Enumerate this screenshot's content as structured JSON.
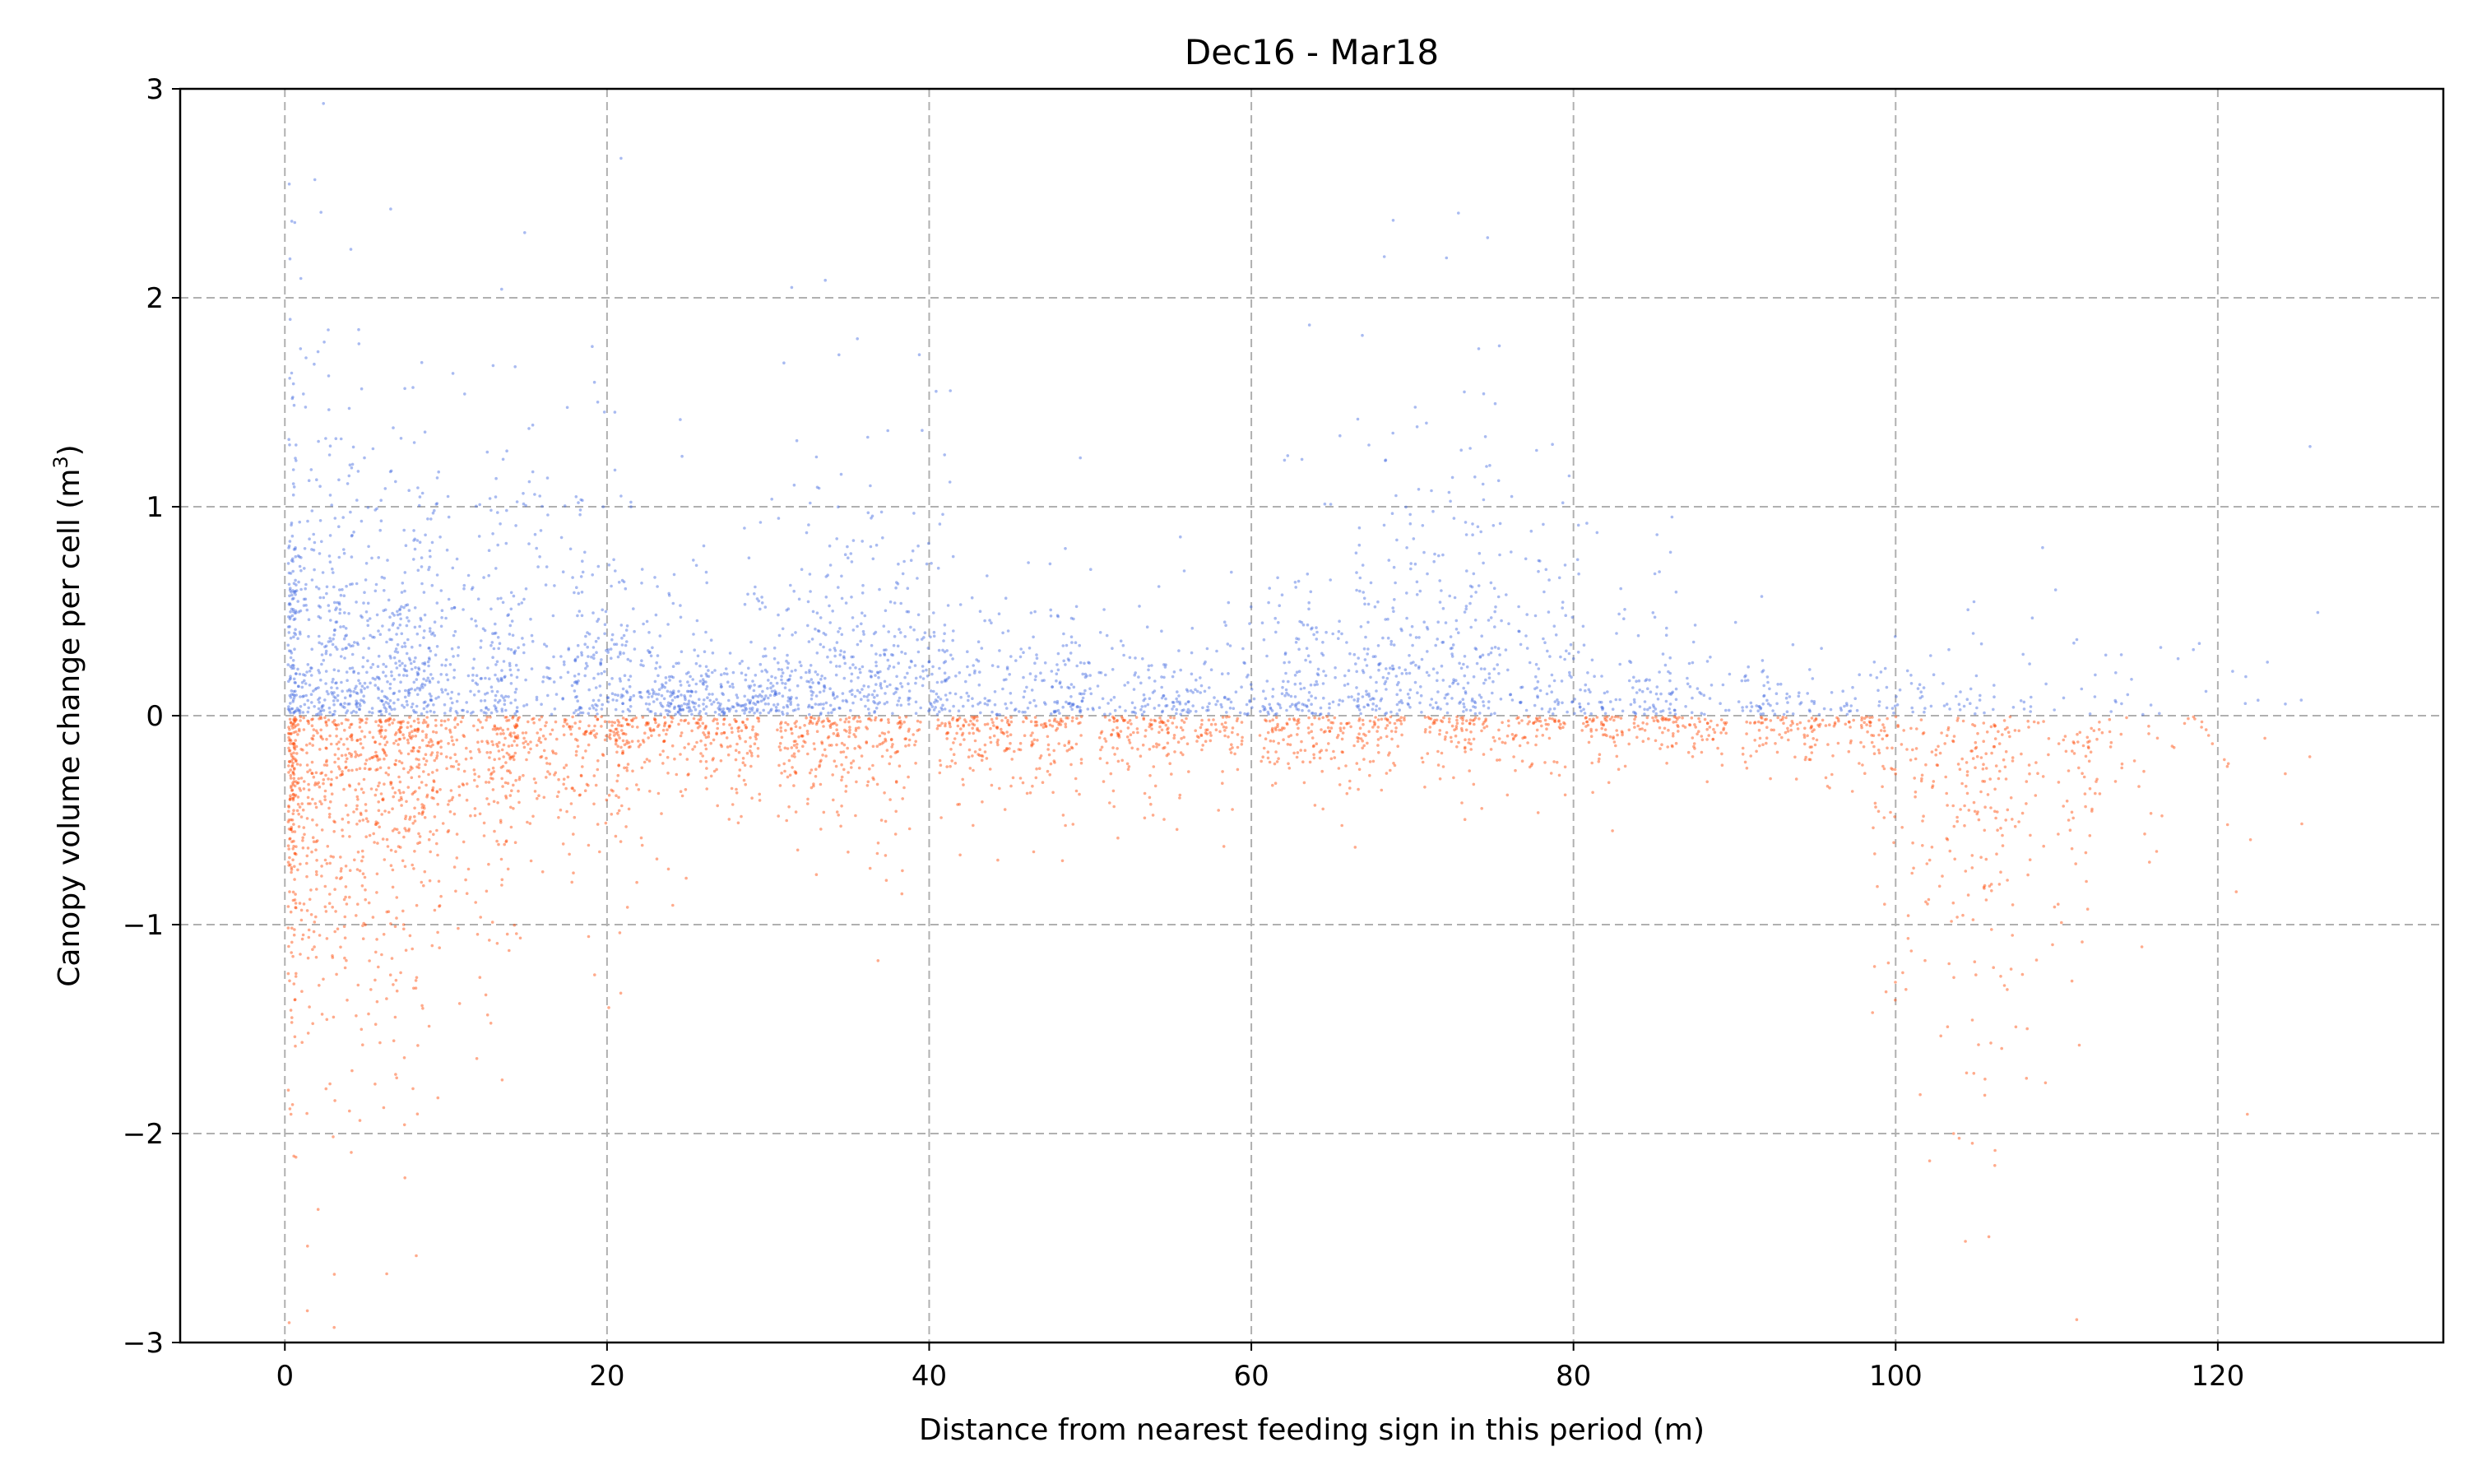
{
  "chart_data": {
    "type": "scatter",
    "title": "Dec16 - Mar18",
    "xlabel": "Distance from nearest feeding sign in this period (m)",
    "ylabel_main": "Canopy volume change per cell (m",
    "ylabel_sup": "3",
    "ylabel_end": ")",
    "xlim": [
      -6.5,
      134
    ],
    "ylim": [
      -3,
      3
    ],
    "x_ticks": [
      0,
      20,
      40,
      60,
      80,
      100,
      120
    ],
    "y_ticks": [
      3,
      2,
      1,
      0,
      -1,
      -2,
      -3
    ],
    "x_tick_labels": [
      "0",
      "20",
      "40",
      "60",
      "80",
      "100",
      "120"
    ],
    "y_tick_labels": [
      "3",
      "2",
      "1",
      "0",
      "−1",
      "−2",
      "−3"
    ],
    "grid": true,
    "grid_style": "dashed",
    "legend": "none",
    "series": [
      {
        "color": "#4169e1",
        "sign": "positive",
        "density_profile": [
          {
            "x": 0.5,
            "spread": 0.55,
            "weight": 2.5
          },
          {
            "x": 5,
            "spread": 0.45,
            "weight": 4.0
          },
          {
            "x": 10,
            "spread": 0.35,
            "weight": 2.5
          },
          {
            "x": 17,
            "spread": 0.45,
            "weight": 2.2
          },
          {
            "x": 22,
            "spread": 0.3,
            "weight": 2.0
          },
          {
            "x": 27,
            "spread": 0.12,
            "weight": 2.2
          },
          {
            "x": 33,
            "spread": 0.35,
            "weight": 1.6
          },
          {
            "x": 37,
            "spread": 0.35,
            "weight": 2.2
          },
          {
            "x": 45,
            "spread": 0.2,
            "weight": 1.6
          },
          {
            "x": 52,
            "spread": 0.18,
            "weight": 1.4
          },
          {
            "x": 60,
            "spread": 0.15,
            "weight": 1.3
          },
          {
            "x": 66,
            "spread": 0.3,
            "weight": 1.5
          },
          {
            "x": 71,
            "spread": 0.6,
            "weight": 1.8
          },
          {
            "x": 76,
            "spread": 0.35,
            "weight": 1.3
          },
          {
            "x": 82,
            "spread": 0.2,
            "weight": 1.1
          },
          {
            "x": 88,
            "spread": 0.15,
            "weight": 0.9
          },
          {
            "x": 95,
            "spread": 0.12,
            "weight": 0.7
          },
          {
            "x": 104,
            "spread": 0.12,
            "weight": 0.6
          },
          {
            "x": 112,
            "spread": 0.15,
            "weight": 0.3
          },
          {
            "x": 122,
            "spread": 0.25,
            "weight": 0.1
          }
        ]
      },
      {
        "color": "#ff4500",
        "sign": "negative",
        "density_profile": [
          {
            "x": 0.5,
            "spread": 0.6,
            "weight": 3.0
          },
          {
            "x": 5,
            "spread": 0.55,
            "weight": 4.0
          },
          {
            "x": 10,
            "spread": 0.4,
            "weight": 3.0
          },
          {
            "x": 17,
            "spread": 0.25,
            "weight": 2.4
          },
          {
            "x": 25,
            "spread": 0.15,
            "weight": 2.4
          },
          {
            "x": 35,
            "spread": 0.18,
            "weight": 2.4
          },
          {
            "x": 45,
            "spread": 0.15,
            "weight": 2.2
          },
          {
            "x": 55,
            "spread": 0.12,
            "weight": 2.0
          },
          {
            "x": 65,
            "spread": 0.12,
            "weight": 1.8
          },
          {
            "x": 75,
            "spread": 0.1,
            "weight": 1.7
          },
          {
            "x": 85,
            "spread": 0.08,
            "weight": 1.5
          },
          {
            "x": 95,
            "spread": 0.1,
            "weight": 1.2
          },
          {
            "x": 103,
            "spread": 0.6,
            "weight": 1.6
          },
          {
            "x": 108,
            "spread": 0.5,
            "weight": 1.2
          },
          {
            "x": 115,
            "spread": 0.3,
            "weight": 0.6
          },
          {
            "x": 122,
            "spread": 0.3,
            "weight": 0.2
          }
        ]
      }
    ]
  }
}
